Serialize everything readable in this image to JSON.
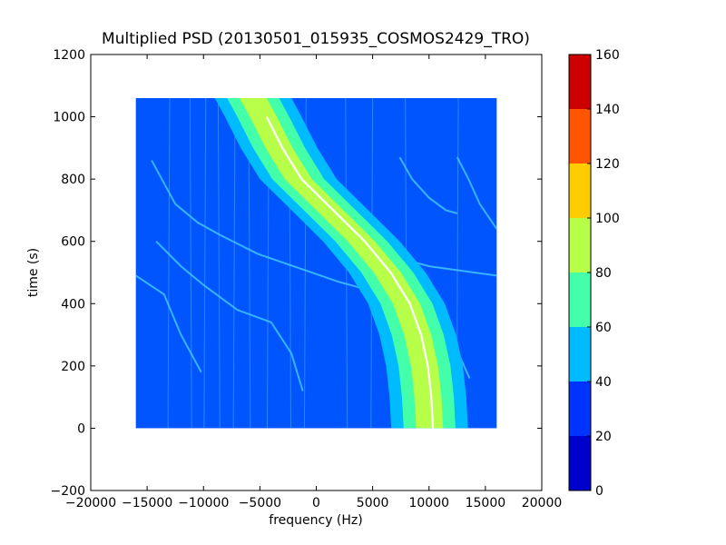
{
  "chart_data": {
    "type": "heatmap",
    "title": "Multiplied PSD (20130501_015935_COSMOS2429_TRO)",
    "xlabel": "frequency (Hz)",
    "ylabel": "time (s)",
    "xlim": [
      -20000,
      20000
    ],
    "ylim": [
      -200,
      1200
    ],
    "x_ticks": [
      -20000,
      -15000,
      -10000,
      -5000,
      0,
      5000,
      10000,
      15000,
      20000
    ],
    "x_tick_labels": [
      "−20000",
      "−15000",
      "−10000",
      "−5000",
      "0",
      "5000",
      "10000",
      "15000",
      "20000"
    ],
    "y_ticks": [
      -200,
      0,
      200,
      400,
      600,
      800,
      1000,
      1200
    ],
    "y_tick_labels": [
      "−200",
      "0",
      "200",
      "400",
      "600",
      "800",
      "1000",
      "1200"
    ],
    "data_extent": {
      "x": [
        -16000,
        16000
      ],
      "y": [
        0,
        1060
      ]
    },
    "colorbar": {
      "range": [
        0,
        160
      ],
      "levels": [
        0,
        20,
        40,
        60,
        80,
        100,
        120,
        140,
        160
      ],
      "tick_labels": [
        "0",
        "20",
        "40",
        "60",
        "80",
        "100",
        "120",
        "140",
        "160"
      ],
      "colors": [
        "#0000cc",
        "#0033ff",
        "#00bbff",
        "#44ffaa",
        "#b7ff48",
        "#ffcc00",
        "#ff5500",
        "#cc0000"
      ]
    },
    "background_level_color": "#0055ff",
    "main_trace": {
      "description_points": [
        {
          "time": 1060,
          "freq": -5600
        },
        {
          "time": 1000,
          "freq": -4700
        },
        {
          "time": 900,
          "freq": -3300
        },
        {
          "time": 800,
          "freq": -1600
        },
        {
          "time": 700,
          "freq": 1200
        },
        {
          "time": 600,
          "freq": 4000
        },
        {
          "time": 500,
          "freq": 6300
        },
        {
          "time": 400,
          "freq": 8000
        },
        {
          "time": 300,
          "freq": 9000
        },
        {
          "time": 200,
          "freq": 9600
        },
        {
          "time": 100,
          "freq": 9900
        },
        {
          "time": 0,
          "freq": 10050
        }
      ],
      "band_widths_hz": {
        "outer_40_60": 3400,
        "middle_60_80": 2300,
        "inner_80_100": 1200
      }
    }
  }
}
